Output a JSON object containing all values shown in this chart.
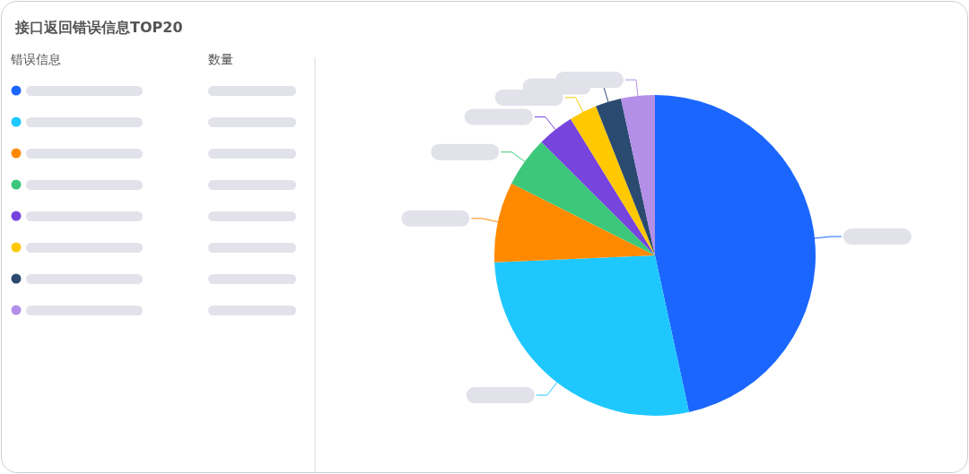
{
  "chart_data": {
    "type": "pie",
    "title": "接口返回错误信息TOP20",
    "categories": [
      null,
      null,
      null,
      null,
      null,
      null,
      null,
      null
    ],
    "values": [
      46.6,
      27.7,
      8.1,
      5.1,
      3.7,
      2.8,
      2.6,
      3.4
    ],
    "colors": [
      "#1a66ff",
      "#1ec8ff",
      "#ff8a00",
      "#3cc87a",
      "#7744dd",
      "#ffc800",
      "#2b4a70",
      "#b38fe8"
    ],
    "annotations": [
      "错误信息",
      "数量"
    ]
  }
}
